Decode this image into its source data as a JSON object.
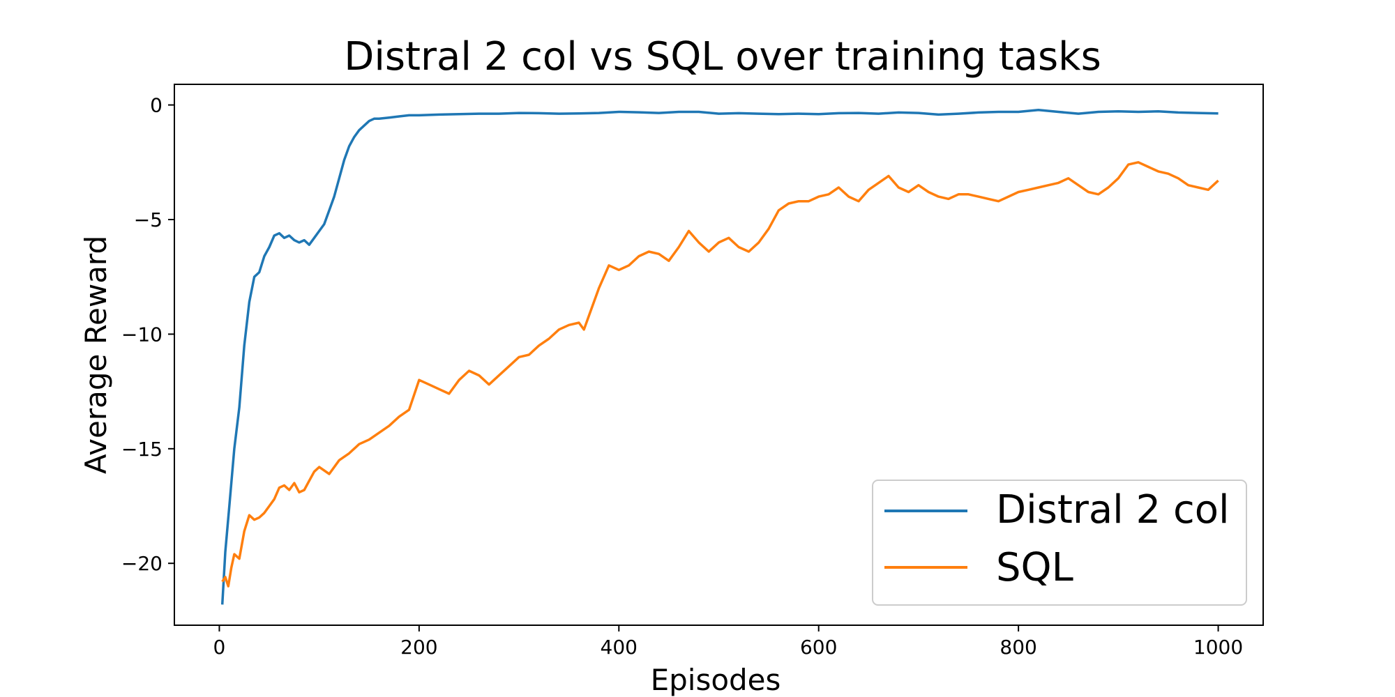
{
  "chart_data": {
    "type": "line",
    "title": "Distral 2 col vs SQL over training tasks",
    "xlabel": "Episodes",
    "ylabel": "Average Reward",
    "xlim": [
      -45,
      1045
    ],
    "ylim": [
      -22.7,
      0.9
    ],
    "xticks": [
      0,
      200,
      400,
      600,
      800,
      1000
    ],
    "yticks": [
      0,
      -5,
      -10,
      -15,
      -20
    ],
    "xtick_labels": [
      "0",
      "200",
      "400",
      "600",
      "800",
      "1000"
    ],
    "ytick_labels": [
      "0",
      "−5",
      "−10",
      "−15",
      "−20"
    ],
    "grid": false,
    "legend_position": "lower-right",
    "series": [
      {
        "name": "Distral 2 col",
        "color": "#1f77b4",
        "x": [
          3,
          6,
          10,
          15,
          20,
          25,
          30,
          35,
          40,
          45,
          50,
          55,
          60,
          65,
          70,
          75,
          80,
          85,
          90,
          95,
          100,
          105,
          110,
          115,
          120,
          125,
          130,
          135,
          140,
          145,
          150,
          155,
          160,
          170,
          180,
          190,
          200,
          220,
          240,
          260,
          280,
          300,
          320,
          340,
          360,
          380,
          400,
          420,
          440,
          460,
          480,
          500,
          520,
          540,
          560,
          580,
          600,
          620,
          640,
          660,
          680,
          700,
          720,
          740,
          760,
          780,
          800,
          820,
          840,
          860,
          880,
          900,
          920,
          940,
          960,
          980,
          1000
        ],
        "y": [
          -21.8,
          -19.5,
          -17.5,
          -15.0,
          -13.2,
          -10.5,
          -8.6,
          -7.5,
          -7.3,
          -6.6,
          -6.2,
          -5.7,
          -5.6,
          -5.8,
          -5.7,
          -5.9,
          -6.0,
          -5.9,
          -6.1,
          -5.8,
          -5.5,
          -5.2,
          -4.6,
          -4.0,
          -3.2,
          -2.4,
          -1.8,
          -1.4,
          -1.1,
          -0.9,
          -0.7,
          -0.6,
          -0.6,
          -0.55,
          -0.5,
          -0.45,
          -0.45,
          -0.42,
          -0.4,
          -0.38,
          -0.38,
          -0.35,
          -0.36,
          -0.38,
          -0.37,
          -0.35,
          -0.3,
          -0.32,
          -0.35,
          -0.3,
          -0.3,
          -0.38,
          -0.36,
          -0.38,
          -0.4,
          -0.38,
          -0.4,
          -0.36,
          -0.35,
          -0.38,
          -0.33,
          -0.35,
          -0.42,
          -0.38,
          -0.33,
          -0.3,
          -0.3,
          -0.22,
          -0.3,
          -0.38,
          -0.3,
          -0.28,
          -0.3,
          -0.28,
          -0.33,
          -0.35,
          -0.37
        ]
      },
      {
        "name": "SQL",
        "color": "#ff7f0e",
        "x": [
          3,
          6,
          9,
          12,
          15,
          20,
          25,
          30,
          35,
          40,
          45,
          50,
          55,
          60,
          65,
          70,
          75,
          80,
          85,
          90,
          95,
          100,
          110,
          120,
          130,
          140,
          150,
          160,
          170,
          180,
          190,
          200,
          210,
          220,
          230,
          240,
          250,
          260,
          270,
          280,
          290,
          300,
          310,
          320,
          330,
          340,
          350,
          360,
          365,
          370,
          380,
          390,
          400,
          410,
          420,
          430,
          440,
          450,
          460,
          470,
          480,
          490,
          500,
          510,
          520,
          530,
          540,
          550,
          560,
          570,
          580,
          590,
          600,
          610,
          620,
          630,
          640,
          650,
          660,
          670,
          680,
          690,
          700,
          710,
          720,
          730,
          740,
          750,
          760,
          770,
          780,
          790,
          800,
          810,
          820,
          830,
          840,
          850,
          860,
          870,
          880,
          890,
          900,
          910,
          920,
          930,
          940,
          950,
          960,
          970,
          980,
          990,
          1000
        ],
        "y": [
          -20.8,
          -20.6,
          -21.0,
          -20.2,
          -19.6,
          -19.8,
          -18.6,
          -17.9,
          -18.1,
          -18.0,
          -17.8,
          -17.5,
          -17.2,
          -16.7,
          -16.6,
          -16.8,
          -16.5,
          -16.9,
          -16.8,
          -16.4,
          -16.0,
          -15.8,
          -16.1,
          -15.5,
          -15.2,
          -14.8,
          -14.6,
          -14.3,
          -14.0,
          -13.6,
          -13.3,
          -12.0,
          -12.2,
          -12.4,
          -12.6,
          -12.0,
          -11.6,
          -11.8,
          -12.2,
          -11.8,
          -11.4,
          -11.0,
          -10.9,
          -10.5,
          -10.2,
          -9.8,
          -9.6,
          -9.5,
          -9.8,
          -9.2,
          -8.0,
          -7.0,
          -7.2,
          -7.0,
          -6.6,
          -6.4,
          -6.5,
          -6.8,
          -6.2,
          -5.5,
          -6.0,
          -6.4,
          -6.0,
          -5.8,
          -6.2,
          -6.4,
          -6.0,
          -5.4,
          -4.6,
          -4.3,
          -4.2,
          -4.2,
          -4.0,
          -3.9,
          -3.6,
          -4.0,
          -4.2,
          -3.7,
          -3.4,
          -3.1,
          -3.6,
          -3.8,
          -3.5,
          -3.8,
          -4.0,
          -4.1,
          -3.9,
          -3.9,
          -4.0,
          -4.1,
          -4.2,
          -4.0,
          -3.8,
          -3.7,
          -3.6,
          -3.5,
          -3.4,
          -3.2,
          -3.5,
          -3.8,
          -3.9,
          -3.6,
          -3.2,
          -2.6,
          -2.5,
          -2.7,
          -2.9,
          -3.0,
          -3.2,
          -3.5,
          -3.6,
          -3.7,
          -3.3
        ]
      }
    ]
  }
}
